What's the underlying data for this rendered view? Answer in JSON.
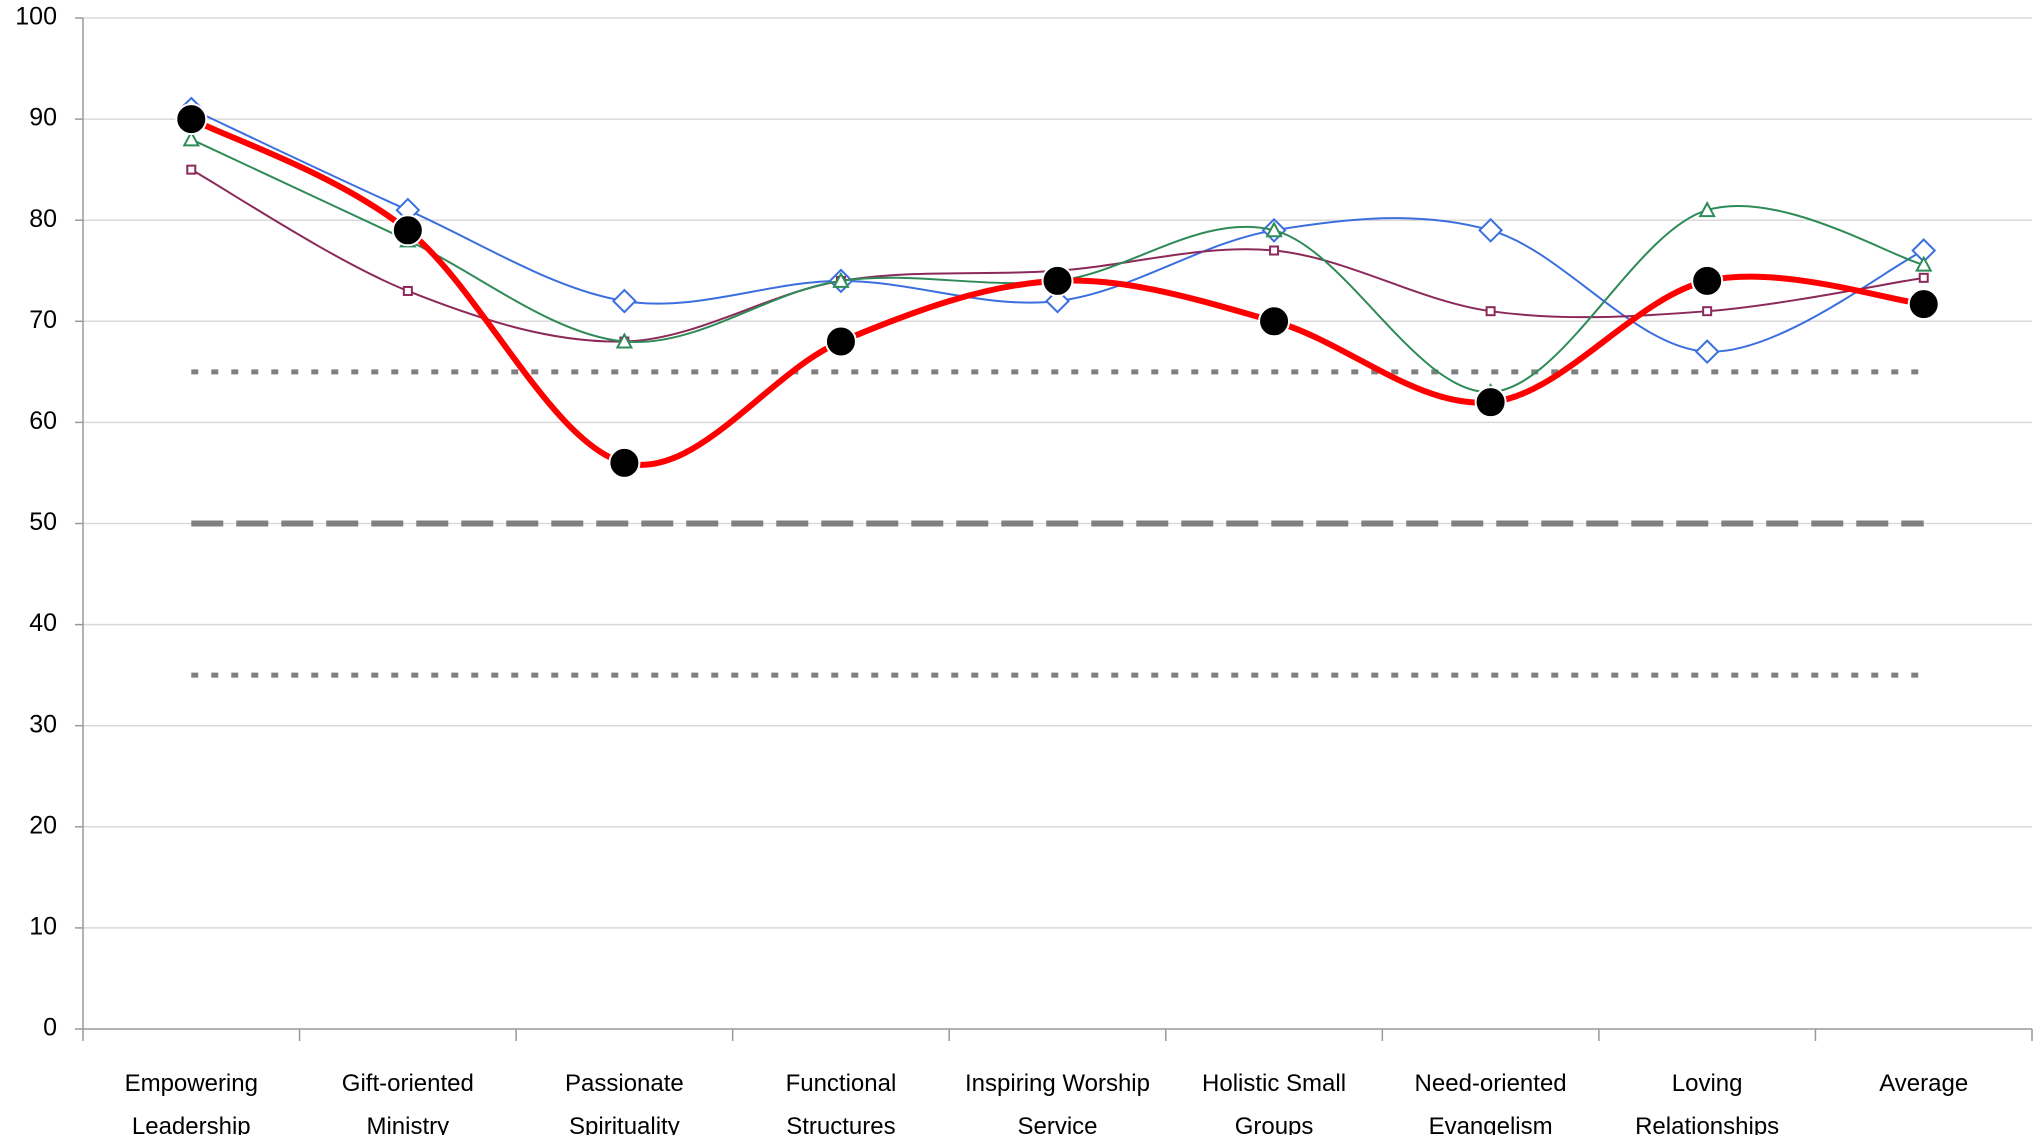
{
  "chart_data": {
    "type": "line",
    "categories": [
      "Empowering\nLeadership",
      "Gift-oriented\nMinistry",
      "Passionate\nSpirituality",
      "Functional\nStructures",
      "Inspiring Worship\nService",
      "Holistic Small\nGroups",
      "Need-oriented\nEvangelism",
      "Loving\nRelationships",
      "Average"
    ],
    "series": [
      {
        "color": "#3b6fe0",
        "marker": "diamond",
        "values": [
          91,
          81,
          72,
          74,
          72,
          79,
          79,
          67,
          77
        ]
      },
      {
        "color": "#8b2a5a",
        "marker": "square",
        "values": [
          85,
          73,
          68,
          74,
          75,
          77,
          71,
          71,
          74.3
        ]
      },
      {
        "color": "#2e8b57",
        "marker": "triangle",
        "values": [
          88,
          78,
          68,
          74,
          74,
          79,
          63,
          81,
          75.6
        ]
      },
      {
        "color": "#ff0000",
        "marker": "circle",
        "values": [
          90,
          79,
          56,
          68,
          74,
          70,
          62,
          74,
          71.7
        ]
      }
    ],
    "reference_lines": [
      {
        "value": 65,
        "style": "dotted"
      },
      {
        "value": 50,
        "style": "dashed"
      },
      {
        "value": 35,
        "style": "dotted"
      }
    ],
    "ylim": [
      0,
      100
    ],
    "yticks": [
      0,
      10,
      20,
      30,
      40,
      50,
      60,
      70,
      80,
      90,
      100
    ],
    "grid": true,
    "smooth": true
  }
}
